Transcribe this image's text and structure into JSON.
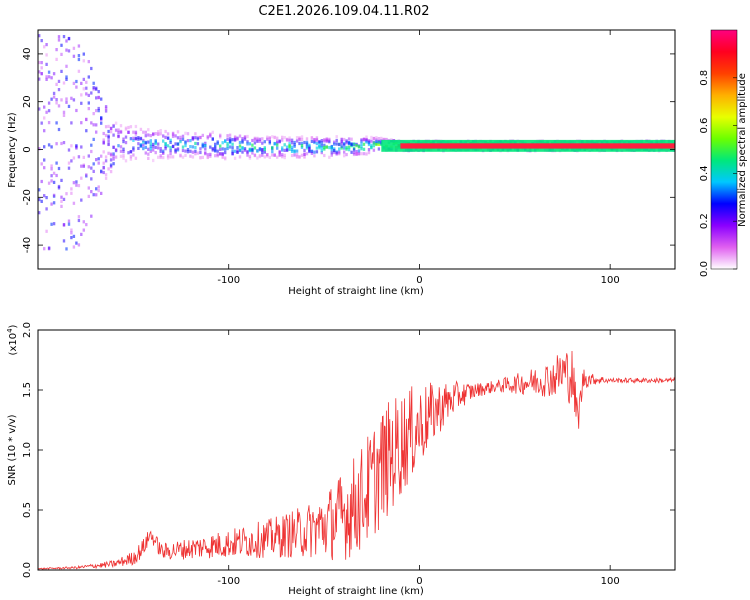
{
  "title": "C2E1.2026.109.04.11.R02",
  "chart_data": [
    {
      "type": "heatmap",
      "name": "spectrogram",
      "xlabel": "Height of straight line (km)",
      "ylabel": "Frequency (Hz)",
      "xlim": [
        -200,
        134
      ],
      "ylim": [
        -50,
        50
      ],
      "xticks": [
        -100,
        0,
        100
      ],
      "xtick_labels": [
        "-100",
        "0",
        "100"
      ],
      "yticks": [
        -40,
        -20,
        0,
        20,
        40
      ],
      "ytick_labels": [
        "-40",
        "-20",
        "0",
        "20",
        "40"
      ],
      "colorbar": {
        "label": "Normalized spectral amplitude",
        "range": [
          0,
          1
        ],
        "ticks": [
          0.0,
          0.2,
          0.4,
          0.6,
          0.8
        ],
        "tick_labels": [
          "0.0",
          "0.2",
          "0.4",
          "0.6",
          "0.8"
        ],
        "colors": [
          "#ffffff",
          "#e060f0",
          "#8a00ff",
          "#0000ff",
          "#00c8ff",
          "#00e87a",
          "#6cff00",
          "#e8ff00",
          "#ffb000",
          "#ff4000",
          "#ff0020",
          "#ff0080"
        ]
      },
      "band": {
        "x": [
          -200,
          -180,
          -160,
          -140,
          -120,
          -100,
          -80,
          -60,
          -40,
          -30,
          -20,
          -10,
          0,
          20,
          60,
          100,
          134
        ],
        "center_hz": [
          3,
          3,
          3,
          2,
          2,
          1.5,
          1,
          1,
          1,
          1.5,
          2,
          1.5,
          1.5,
          1.5,
          1.5,
          1.5,
          1.5
        ],
        "halfwidth_hz": [
          45,
          45,
          8,
          6,
          5,
          5,
          4,
          4,
          4,
          3.5,
          2.5,
          2,
          2,
          2,
          2,
          2,
          2
        ],
        "peak_amplitude": [
          0.22,
          0.25,
          0.3,
          0.38,
          0.4,
          0.42,
          0.45,
          0.45,
          0.45,
          0.5,
          0.55,
          0.9,
          0.95,
          0.9,
          0.88,
          0.9,
          0.92
        ]
      }
    },
    {
      "type": "line",
      "name": "snr",
      "xlabel": "Height of straight line (km)",
      "ylabel": "SNR (10 * v/v)",
      "yscale_label": "(x10^4)",
      "xlim": [
        -200,
        134
      ],
      "ylim": [
        0,
        2.0
      ],
      "xticks": [
        -100,
        0,
        100
      ],
      "xtick_labels": [
        "-100",
        "0",
        "100"
      ],
      "yticks": [
        0,
        0.5,
        1.0,
        1.5,
        2.0
      ],
      "ytick_labels": [
        "0.0",
        "0.5",
        "1.0",
        "1.5",
        "2.0"
      ],
      "color": "#ee3333",
      "x": [
        -200,
        -180,
        -160,
        -150,
        -145,
        -141,
        -135,
        -120,
        -100,
        -80,
        -60,
        -50,
        -40,
        -30,
        -20,
        -10,
        0,
        10,
        20,
        30,
        40,
        50,
        60,
        70,
        75,
        80,
        83,
        86,
        90,
        100,
        110,
        120,
        134
      ],
      "y": [
        0.01,
        0.02,
        0.05,
        0.1,
        0.18,
        0.3,
        0.15,
        0.18,
        0.22,
        0.26,
        0.32,
        0.37,
        0.45,
        0.6,
        0.85,
        1.05,
        1.2,
        1.35,
        1.45,
        1.5,
        1.53,
        1.55,
        1.57,
        1.6,
        1.65,
        1.62,
        1.25,
        1.6,
        1.59,
        1.58,
        1.58,
        1.58,
        1.58
      ],
      "noise_amplitude": [
        0.005,
        0.01,
        0.03,
        0.06,
        0.08,
        0.06,
        0.07,
        0.09,
        0.12,
        0.16,
        0.22,
        0.28,
        0.38,
        0.45,
        0.5,
        0.45,
        0.35,
        0.22,
        0.12,
        0.06,
        0.05,
        0.08,
        0.12,
        0.16,
        0.22,
        0.25,
        0.15,
        0.1,
        0.05,
        0.02,
        0.02,
        0.02,
        0.02
      ]
    }
  ]
}
